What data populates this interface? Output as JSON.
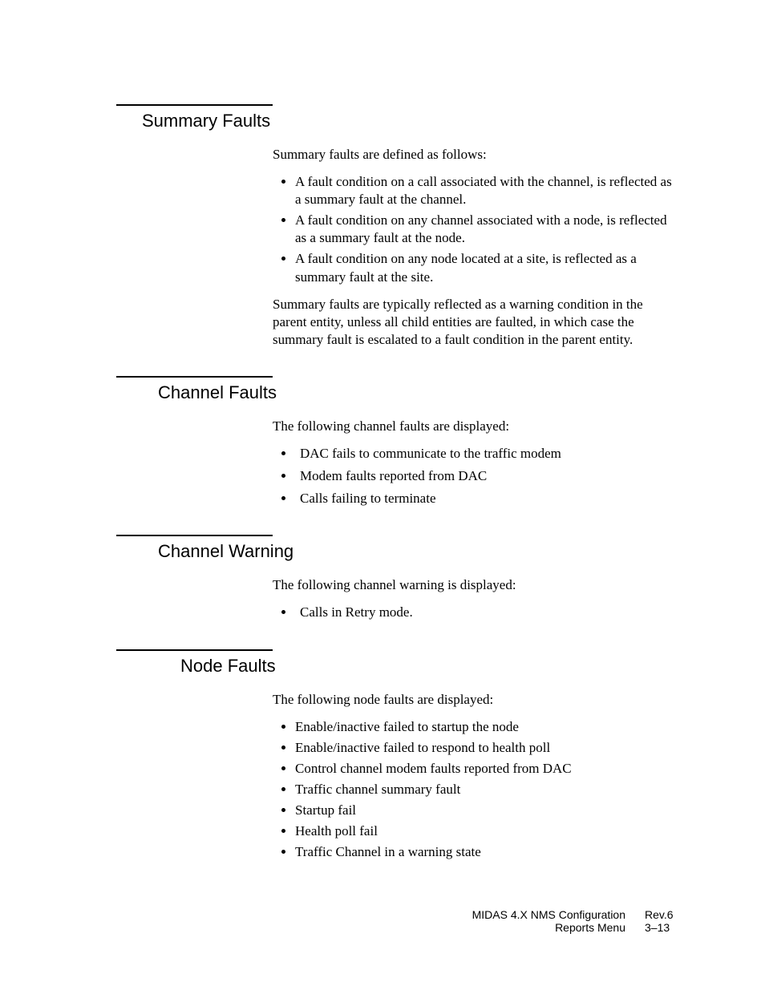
{
  "sections": [
    {
      "heading": "Summary Faults",
      "heading_indent": 1,
      "intro": "Summary faults are defined as follows:",
      "bullets_style": "tight",
      "bullets": [
        "A fault condition on a call associated with the channel, is reflected as a summary fault at the channel.",
        "A fault condition on any channel associated with a node, is reflected as a summary fault at the node.",
        "A fault condition on any node located at a site, is reflected as a summary fault at the site."
      ],
      "outro": "Summary faults are typically reflected as a warning condition in the parent entity, unless all child entities are faulted, in which case the summary fault is escalated to a fault condition in the parent entity."
    },
    {
      "heading": "Channel Faults",
      "heading_indent": 2,
      "intro": "The following channel faults are displayed:",
      "bullets_style": "wide",
      "bullets": [
        "DAC fails to communicate to the traffic modem",
        "Modem faults reported from DAC",
        "Calls failing to terminate"
      ],
      "outro": ""
    },
    {
      "heading": "Channel Warning",
      "heading_indent": 2,
      "intro": "The following channel warning is displayed:",
      "bullets_style": "wide",
      "bullets": [
        "Calls in Retry mode."
      ],
      "outro": ""
    },
    {
      "heading": "Node Faults",
      "heading_indent": 4,
      "intro": "The following node faults are displayed:",
      "bullets_style": "tight",
      "bullets": [
        "Enable/inactive failed to startup the node",
        "Enable/inactive failed to respond to health poll",
        "Control channel modem faults reported from DAC",
        "Traffic channel summary fault",
        "Startup fail",
        "Health poll fail",
        "Traffic Channel in a warning state"
      ],
      "outro": ""
    }
  ],
  "footer": {
    "line1_left": "MIDAS 4.X  NMS Configuration",
    "line1_right": "Rev.6",
    "line2_left": "Reports Menu",
    "line2_right": "3–13"
  }
}
